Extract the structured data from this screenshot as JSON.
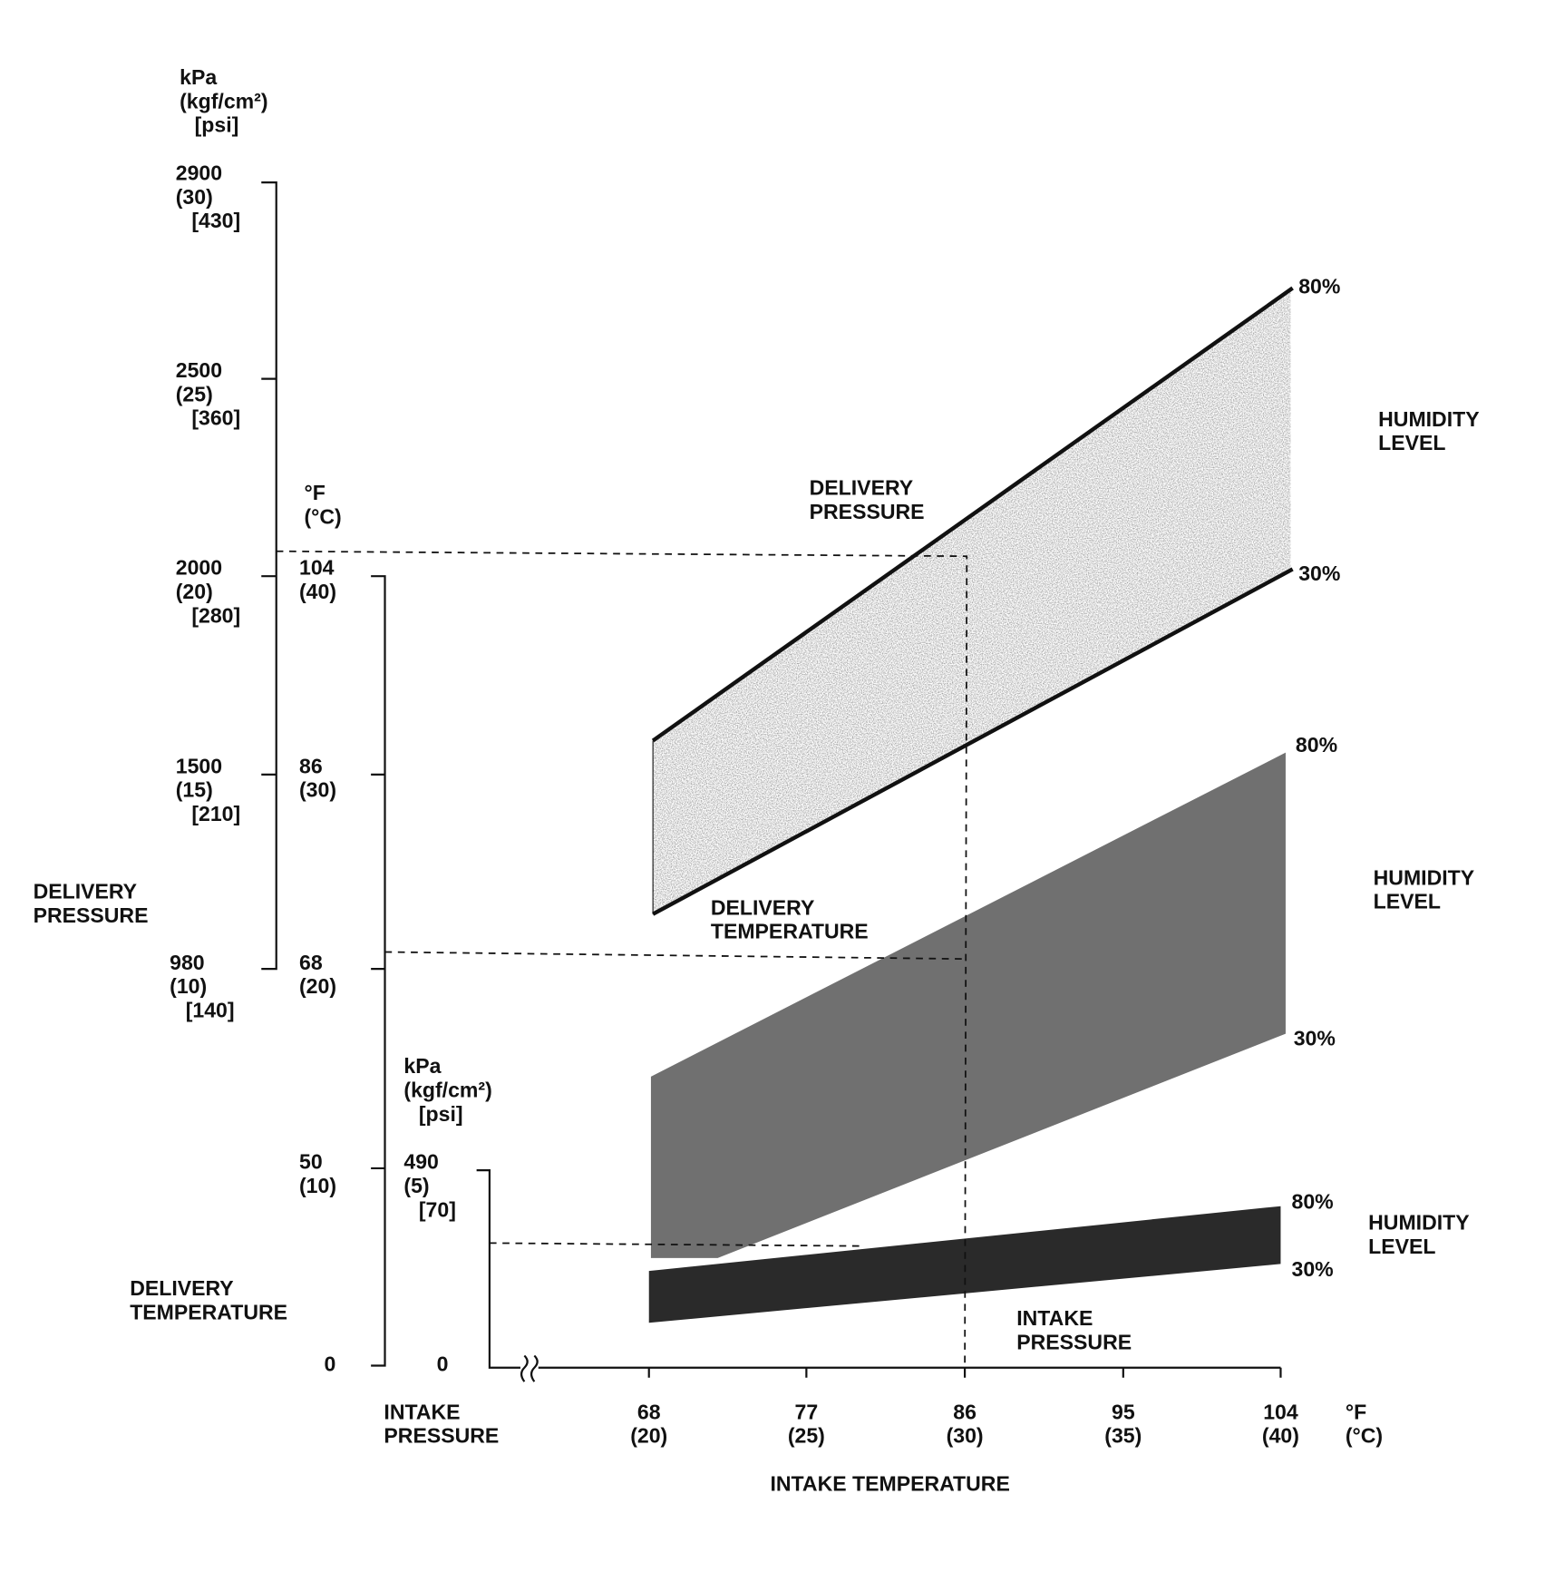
{
  "axes": {
    "delivery_pressure": {
      "title": [
        "DELIVERY",
        "PRESSURE"
      ],
      "unit": [
        "kPa",
        "(kgf/cm²)",
        "[psi]"
      ],
      "ticks": [
        [
          "2900",
          "(30)",
          "[430]"
        ],
        [
          "2500",
          "(25)",
          "[360]"
        ],
        [
          "2000",
          "(20)",
          "[280]"
        ],
        [
          "1500",
          "(15)",
          "[210]"
        ],
        [
          "980",
          "(10)",
          "[140]"
        ]
      ]
    },
    "delivery_temperature": {
      "title": [
        "DELIVERY",
        "TEMPERATURE"
      ],
      "unit": [
        "°F",
        "(°C)"
      ],
      "ticks": [
        [
          "104",
          "(40)"
        ],
        [
          "86",
          "(30)"
        ],
        [
          "68",
          "(20)"
        ],
        [
          "50",
          "(10)"
        ],
        [
          "0"
        ]
      ]
    },
    "intake_pressure": {
      "title": [
        "INTAKE",
        "PRESSURE"
      ],
      "unit": [
        "kPa",
        "(kgf/cm²)",
        "[psi]"
      ],
      "ticks": [
        [
          "490",
          "(5)",
          "[70]"
        ],
        [
          "0"
        ]
      ]
    },
    "intake_temperature": {
      "title": "INTAKE TEMPERATURE",
      "unit": [
        "°F",
        "(°C)"
      ],
      "ticks": [
        [
          "68",
          "(20)"
        ],
        [
          "77",
          "(25)"
        ],
        [
          "86",
          "(30)"
        ],
        [
          "95",
          "(35)"
        ],
        [
          "104",
          "(40)"
        ]
      ]
    }
  },
  "bands": [
    {
      "label": [
        "DELIVERY",
        "PRESSURE"
      ],
      "upper": "80%",
      "lower": "30%",
      "humidity": [
        "HUMIDITY",
        "LEVEL"
      ]
    },
    {
      "label": [
        "DELIVERY",
        "TEMPERATURE"
      ],
      "upper": "80%",
      "lower": "30%",
      "humidity": [
        "HUMIDITY",
        "LEVEL"
      ]
    },
    {
      "label": [
        "INTAKE",
        "PRESSURE"
      ],
      "upper": "80%",
      "lower": "30%",
      "humidity": [
        "HUMIDITY",
        "LEVEL"
      ]
    }
  ]
}
